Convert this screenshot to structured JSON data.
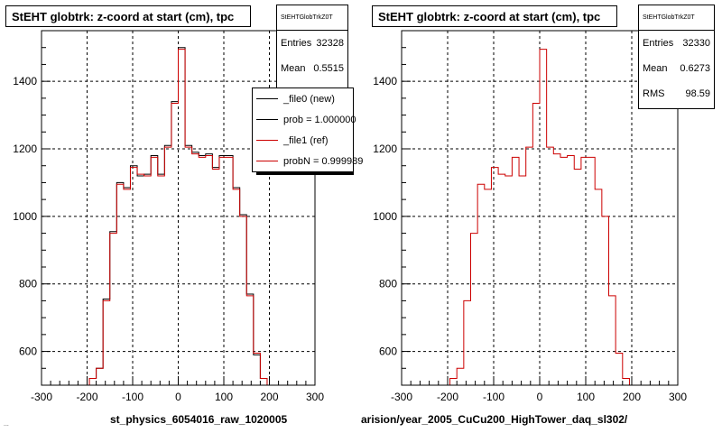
{
  "panels": [
    {
      "title": "StEHT globtrk: z-coord at start (cm), tpc",
      "xlabel": "st_physics_6054016_raw_1020005",
      "stats": {
        "name": "StEHTGlobTrkZ0T",
        "rows": [
          {
            "label": "Entries",
            "value": "32328"
          },
          {
            "label": "Mean",
            "value": "0.5515"
          }
        ]
      },
      "legend": [
        {
          "label": "_file0 (new)",
          "color": "#000000"
        },
        {
          "label": "prob = 1.000000",
          "color": "#000000"
        },
        {
          "label": "_file1 (ref)",
          "color": "#cc0000"
        },
        {
          "label": "probN = 0.999989",
          "color": "#cc0000"
        }
      ]
    },
    {
      "title": "StEHT globtrk: z-coord at start (cm), tpc",
      "xlabel": "arision/year_2005_CuCu200_HighTower_daq_sl302/",
      "stats": {
        "name": "StEHTGlobTrkZ0T",
        "rows": [
          {
            "label": "Entries",
            "value": "32330"
          },
          {
            "label": "Mean",
            "value": "0.6273"
          },
          {
            "label": "RMS",
            "value": "98.59"
          }
        ]
      },
      "legend": []
    }
  ],
  "footnote": "...",
  "colors": {
    "new": "#000000",
    "ref": "#cc0000"
  },
  "chart_data": [
    {
      "type": "histogram",
      "title": "StEHT globtrk: z-coord at start (cm), tpc",
      "xlabel": "st_physics_6054016_raw_1020005",
      "xlim": [
        -300,
        300
      ],
      "ylim": [
        500,
        1550
      ],
      "xticks": [
        -300,
        -200,
        -100,
        0,
        100,
        200,
        300
      ],
      "yticks": [
        600,
        800,
        1000,
        1200,
        1400
      ],
      "grid": true,
      "bin_edges": [
        -300,
        -285,
        -270,
        -255,
        -240,
        -225,
        -210,
        -195,
        -180,
        -165,
        -150,
        -135,
        -120,
        -105,
        -90,
        -75,
        -60,
        -45,
        -30,
        -15,
        0,
        15,
        30,
        45,
        60,
        75,
        90,
        105,
        120,
        135,
        150,
        165,
        180,
        195,
        210,
        225,
        240,
        255,
        270,
        285,
        300
      ],
      "series": [
        {
          "name": "_file0 (new)",
          "color": "#000000",
          "values": [
            500,
            500,
            500,
            500,
            500,
            500,
            500,
            520,
            550,
            755,
            955,
            1100,
            1085,
            1150,
            1120,
            1125,
            1180,
            1125,
            1210,
            1340,
            1500,
            1210,
            1190,
            1180,
            1185,
            1145,
            1180,
            1180,
            1085,
            1005,
            770,
            590,
            520,
            500,
            500,
            500,
            500,
            500,
            500,
            500
          ]
        },
        {
          "name": "_file1 (ref)",
          "color": "#cc0000",
          "values": [
            500,
            500,
            500,
            500,
            500,
            500,
            500,
            520,
            550,
            750,
            950,
            1095,
            1080,
            1145,
            1125,
            1120,
            1175,
            1120,
            1205,
            1335,
            1495,
            1205,
            1185,
            1175,
            1180,
            1140,
            1175,
            1175,
            1080,
            1000,
            765,
            595,
            520,
            500,
            500,
            500,
            500,
            500,
            500,
            500
          ]
        }
      ]
    },
    {
      "type": "histogram",
      "title": "StEHT globtrk: z-coord at start (cm), tpc",
      "xlabel": "arision/year_2005_CuCu200_HighTower_daq_sl302/",
      "xlim": [
        -300,
        300
      ],
      "ylim": [
        500,
        1550
      ],
      "xticks": [
        -300,
        -200,
        -100,
        0,
        100,
        200,
        300
      ],
      "yticks": [
        600,
        800,
        1000,
        1200,
        1400
      ],
      "grid": true,
      "bin_edges": [
        -300,
        -285,
        -270,
        -255,
        -240,
        -225,
        -210,
        -195,
        -180,
        -165,
        -150,
        -135,
        -120,
        -105,
        -90,
        -75,
        -60,
        -45,
        -30,
        -15,
        0,
        15,
        30,
        45,
        60,
        75,
        90,
        105,
        120,
        135,
        150,
        165,
        180,
        195,
        210,
        225,
        240,
        255,
        270,
        285,
        300
      ],
      "series": [
        {
          "name": "_file1 (ref)",
          "color": "#cc0000",
          "values": [
            500,
            500,
            500,
            500,
            500,
            500,
            500,
            520,
            550,
            750,
            950,
            1095,
            1080,
            1145,
            1125,
            1120,
            1175,
            1120,
            1205,
            1335,
            1495,
            1205,
            1185,
            1175,
            1180,
            1140,
            1175,
            1175,
            1080,
            1000,
            765,
            595,
            520,
            500,
            500,
            500,
            500,
            500,
            500,
            500
          ]
        }
      ]
    }
  ]
}
